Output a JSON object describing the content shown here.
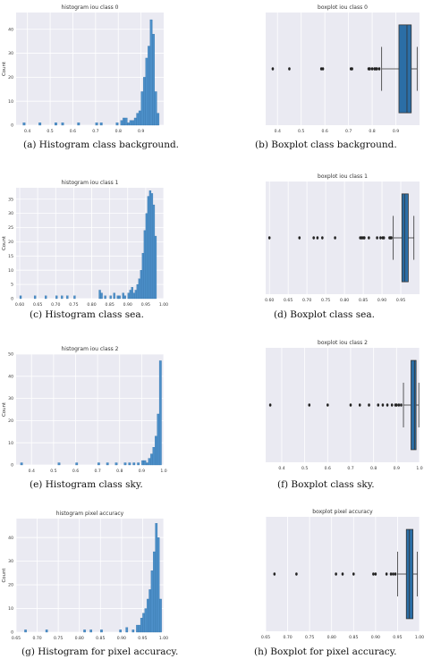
{
  "colors": {
    "plot_bg": "#eaeaf2",
    "grid": "#ffffff",
    "bar": "#4c8fc8",
    "bar_edge": "#2f6fa8",
    "box": "#2b6ea6",
    "whisker": "#333333",
    "point": "#222222"
  },
  "chart_data": [
    {
      "type": "bar",
      "title": "histogram iou class 0",
      "caption": "(a) Histogram class background.",
      "ylabel": "Count",
      "xlim": [
        0.35,
        1.0
      ],
      "ylim": [
        0,
        47
      ],
      "xticks": [
        0.4,
        0.5,
        0.6,
        0.7,
        0.8,
        0.9
      ],
      "xtick_labels": [
        "0.4",
        "0.5",
        "0.6",
        "0.7",
        "0.8",
        "0.9"
      ],
      "yticks": [
        0,
        10,
        20,
        30,
        40
      ],
      "bin_width": 0.01,
      "bins_start": [
        0.38,
        0.45,
        0.52,
        0.55,
        0.62,
        0.7,
        0.72,
        0.79,
        0.81,
        0.82,
        0.83,
        0.84,
        0.85,
        0.86,
        0.87,
        0.88,
        0.89,
        0.9,
        0.91,
        0.92,
        0.93,
        0.94,
        0.95,
        0.96,
        0.97
      ],
      "values": [
        1,
        1,
        1,
        1,
        1,
        1,
        1,
        1,
        2,
        3,
        3,
        1,
        2,
        2,
        3,
        5,
        6,
        14,
        20,
        28,
        33,
        44,
        38,
        14,
        5
      ]
    },
    {
      "type": "boxplot",
      "title": "boxplot iou class 0",
      "caption": "(b) Boxplot class background.",
      "xlim": [
        0.35,
        1.0
      ],
      "xticks": [
        0.4,
        0.5,
        0.6,
        0.7,
        0.8,
        0.9
      ],
      "xtick_labels": [
        "0.4",
        "0.5",
        "0.6",
        "0.7",
        "0.8",
        "0.9"
      ],
      "q1": 0.913,
      "median": 0.947,
      "q3": 0.965,
      "whisker_low": 0.84,
      "whisker_high": 0.99,
      "outliers": [
        0.38,
        0.45,
        0.585,
        0.592,
        0.71,
        0.715,
        0.785,
        0.79,
        0.8,
        0.81,
        0.815,
        0.82,
        0.83
      ]
    },
    {
      "type": "bar",
      "title": "histogram iou class 1",
      "caption": "(c) Histogram class sea.",
      "ylabel": "Count",
      "xlim": [
        0.59,
        1.0
      ],
      "ylim": [
        0,
        39
      ],
      "xticks": [
        0.6,
        0.65,
        0.7,
        0.75,
        0.8,
        0.85,
        0.9,
        0.95,
        1.0
      ],
      "xtick_labels": [
        "0.60",
        "0.65",
        "0.70",
        "0.75",
        "0.80",
        "0.85",
        "0.90",
        "0.95",
        "1.00"
      ],
      "yticks": [
        0,
        5,
        10,
        15,
        20,
        25,
        30,
        35
      ],
      "bin_width": 0.005,
      "bins_start": [
        0.6,
        0.64,
        0.67,
        0.7,
        0.715,
        0.73,
        0.75,
        0.82,
        0.825,
        0.835,
        0.85,
        0.86,
        0.87,
        0.875,
        0.885,
        0.89,
        0.9,
        0.905,
        0.91,
        0.915,
        0.92,
        0.925,
        0.93,
        0.935,
        0.94,
        0.945,
        0.95,
        0.955,
        0.96,
        0.965,
        0.97,
        0.975
      ],
      "values": [
        1,
        1,
        1,
        1,
        1,
        1,
        1,
        3,
        2,
        1,
        1,
        2,
        1,
        1,
        2,
        1,
        2,
        3,
        4,
        2,
        3,
        5,
        7,
        10,
        16,
        24,
        30,
        36,
        38,
        37,
        33,
        22
      ]
    },
    {
      "type": "boxplot",
      "title": "boxplot iou class 1",
      "caption": "(d) Boxplot class sea.",
      "xlim": [
        0.59,
        1.0
      ],
      "xticks": [
        0.6,
        0.65,
        0.7,
        0.75,
        0.8,
        0.85,
        0.9,
        0.95
      ],
      "xtick_labels": [
        "0.60",
        "0.65",
        "0.70",
        "0.75",
        "0.80",
        "0.85",
        "0.90",
        "0.95"
      ],
      "q1": 0.953,
      "median": 0.96,
      "q3": 0.97,
      "whisker_low": 0.93,
      "whisker_high": 0.985,
      "outliers": [
        0.6,
        0.68,
        0.718,
        0.728,
        0.741,
        0.775,
        0.842,
        0.846,
        0.85,
        0.853,
        0.865,
        0.887,
        0.896,
        0.902,
        0.905,
        0.92,
        0.923,
        0.925
      ]
    },
    {
      "type": "bar",
      "title": "histogram iou class 2",
      "caption": "(e) Histogram class sky.",
      "ylabel": "Count",
      "xlim": [
        0.33,
        1.0
      ],
      "ylim": [
        0,
        50
      ],
      "xticks": [
        0.4,
        0.5,
        0.6,
        0.7,
        0.8,
        0.9,
        1.0
      ],
      "xtick_labels": [
        "0.4",
        "0.5",
        "0.6",
        "0.7",
        "0.8",
        "0.9",
        "1.0"
      ],
      "yticks": [
        0,
        10,
        20,
        30,
        40,
        50
      ],
      "bin_width": 0.01,
      "bins_start": [
        0.35,
        0.52,
        0.6,
        0.7,
        0.74,
        0.78,
        0.82,
        0.84,
        0.86,
        0.88,
        0.9,
        0.91,
        0.92,
        0.93,
        0.94,
        0.95,
        0.96,
        0.97,
        0.98
      ],
      "values": [
        1,
        1,
        1,
        1,
        1,
        1,
        1,
        1,
        1,
        1,
        2,
        2,
        1,
        3,
        5,
        8,
        13,
        23,
        47
      ]
    },
    {
      "type": "boxplot",
      "title": "boxplot iou class 2",
      "caption": "(f) Boxplot class sky.",
      "xlim": [
        0.33,
        1.0
      ],
      "xticks": [
        0.4,
        0.5,
        0.6,
        0.7,
        0.8,
        0.9,
        1.0
      ],
      "xtick_labels": [
        "0.4",
        "0.5",
        "0.6",
        "0.7",
        "0.8",
        "0.9",
        "1.0"
      ],
      "q1": 0.963,
      "median": 0.978,
      "q3": 0.985,
      "whisker_low": 0.93,
      "whisker_high": 0.997,
      "outliers": [
        0.35,
        0.52,
        0.6,
        0.7,
        0.74,
        0.78,
        0.82,
        0.84,
        0.86,
        0.88,
        0.895,
        0.9,
        0.91,
        0.92
      ]
    },
    {
      "type": "bar",
      "title": "histogram pixel accuracy",
      "caption": "(g) Histogram for pixel accuracy.",
      "ylabel": "Count",
      "xlim": [
        0.65,
        1.0
      ],
      "ylim": [
        0,
        48
      ],
      "xticks": [
        0.65,
        0.7,
        0.75,
        0.8,
        0.85,
        0.9,
        0.95,
        1.0
      ],
      "xtick_labels": [
        "0.65",
        "0.70",
        "0.75",
        "0.80",
        "0.85",
        "0.90",
        "0.95",
        "1.00"
      ],
      "yticks": [
        0,
        10,
        20,
        30,
        40
      ],
      "bin_width": 0.005,
      "bins_start": [
        0.67,
        0.72,
        0.81,
        0.825,
        0.85,
        0.895,
        0.91,
        0.925,
        0.935,
        0.94,
        0.945,
        0.95,
        0.955,
        0.96,
        0.965,
        0.97,
        0.975,
        0.98,
        0.985,
        0.99
      ],
      "values": [
        1,
        1,
        1,
        1,
        1,
        1,
        2,
        1,
        3,
        3,
        6,
        8,
        10,
        14,
        18,
        26,
        34,
        46,
        40,
        14
      ]
    },
    {
      "type": "boxplot",
      "title": "boxplot pixel accuracy",
      "caption": "(h) Boxplot for pixel accuracy.",
      "xlim": [
        0.65,
        1.0
      ],
      "xticks": [
        0.65,
        0.7,
        0.75,
        0.8,
        0.85,
        0.9,
        0.95,
        1.0
      ],
      "xtick_labels": [
        "0.65",
        "0.70",
        "0.75",
        "0.80",
        "0.85",
        "0.90",
        "0.95",
        "1.00"
      ],
      "q1": 0.97,
      "median": 0.977,
      "q3": 0.985,
      "whisker_low": 0.95,
      "whisker_high": 0.995,
      "outliers": [
        0.67,
        0.72,
        0.81,
        0.825,
        0.85,
        0.895,
        0.9,
        0.925,
        0.935,
        0.94,
        0.945
      ]
    }
  ]
}
